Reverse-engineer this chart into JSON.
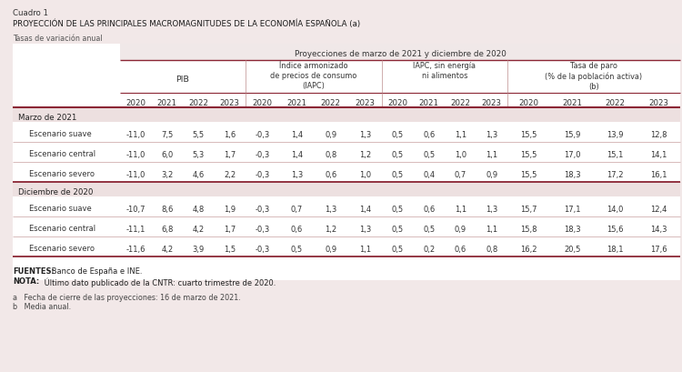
{
  "title_line1": "Cuadro 1",
  "title_line2": "PROYECCIÓN DE LAS PRINCIPALES MACROMAGNITUDES DE LA ECONOMÍA ESPAÑOLA (a)",
  "subtitle": "Tasas de variación anual",
  "header_top": "Proyecciones de marzo de 2021 y diciembre de 2020",
  "col_groups": [
    "PIB",
    "Índice armonizado\nde precios de consumo\n(IAPC)",
    "IAPC, sin energía\nni alimentos",
    "Tasa de paro\n(% de la población activa)\n(b)"
  ],
  "years": [
    "2020",
    "2021",
    "2022",
    "2023"
  ],
  "section1_label": "Marzo de 2021",
  "section2_label": "Diciembre de 2020",
  "row_labels": [
    "Escenario suave",
    "Escenario central",
    "Escenario severo"
  ],
  "data": {
    "marzo": {
      "suave": [
        "-11,0",
        "7,5",
        "5,5",
        "1,6",
        "-0,3",
        "1,4",
        "0,9",
        "1,3",
        "0,5",
        "0,6",
        "1,1",
        "1,3",
        "15,5",
        "15,9",
        "13,9",
        "12,8"
      ],
      "central": [
        "-11,0",
        "6,0",
        "5,3",
        "1,7",
        "-0,3",
        "1,4",
        "0,8",
        "1,2",
        "0,5",
        "0,5",
        "1,0",
        "1,1",
        "15,5",
        "17,0",
        "15,1",
        "14,1"
      ],
      "severo": [
        "-11,0",
        "3,2",
        "4,6",
        "2,2",
        "-0,3",
        "1,3",
        "0,6",
        "1,0",
        "0,5",
        "0,4",
        "0,7",
        "0,9",
        "15,5",
        "18,3",
        "17,2",
        "16,1"
      ]
    },
    "diciembre": {
      "suave": [
        "-10,7",
        "8,6",
        "4,8",
        "1,9",
        "-0,3",
        "0,7",
        "1,3",
        "1,4",
        "0,5",
        "0,6",
        "1,1",
        "1,3",
        "15,7",
        "17,1",
        "14,0",
        "12,4"
      ],
      "central": [
        "-11,1",
        "6,8",
        "4,2",
        "1,7",
        "-0,3",
        "0,6",
        "1,2",
        "1,3",
        "0,5",
        "0,5",
        "0,9",
        "1,1",
        "15,8",
        "18,3",
        "15,6",
        "14,3"
      ],
      "severo": [
        "-11,6",
        "4,2",
        "3,9",
        "1,5",
        "-0,3",
        "0,5",
        "0,9",
        "1,1",
        "0,5",
        "0,2",
        "0,6",
        "0,8",
        "16,2",
        "20,5",
        "18,1",
        "17,6"
      ]
    }
  },
  "footnote1_bold": "FUENTES:",
  "footnote1_rest": " Banco de España e INE.",
  "footnote2_bold": "NOTA:",
  "footnote2_rest": " Último dato publicado de la CNTR: cuarto trimestre de 2020.",
  "footnote3a": "a   Fecha de cierre de las proyecciones: 16 de marzo de 2021.",
  "footnote3b": "b   Media anual.",
  "bg_color": "#f2e8e8",
  "table_bg": "#ffffff",
  "dark_red": "#8b2635",
  "light_line": "#c8a0a0",
  "section_bg": "#ede0e0"
}
